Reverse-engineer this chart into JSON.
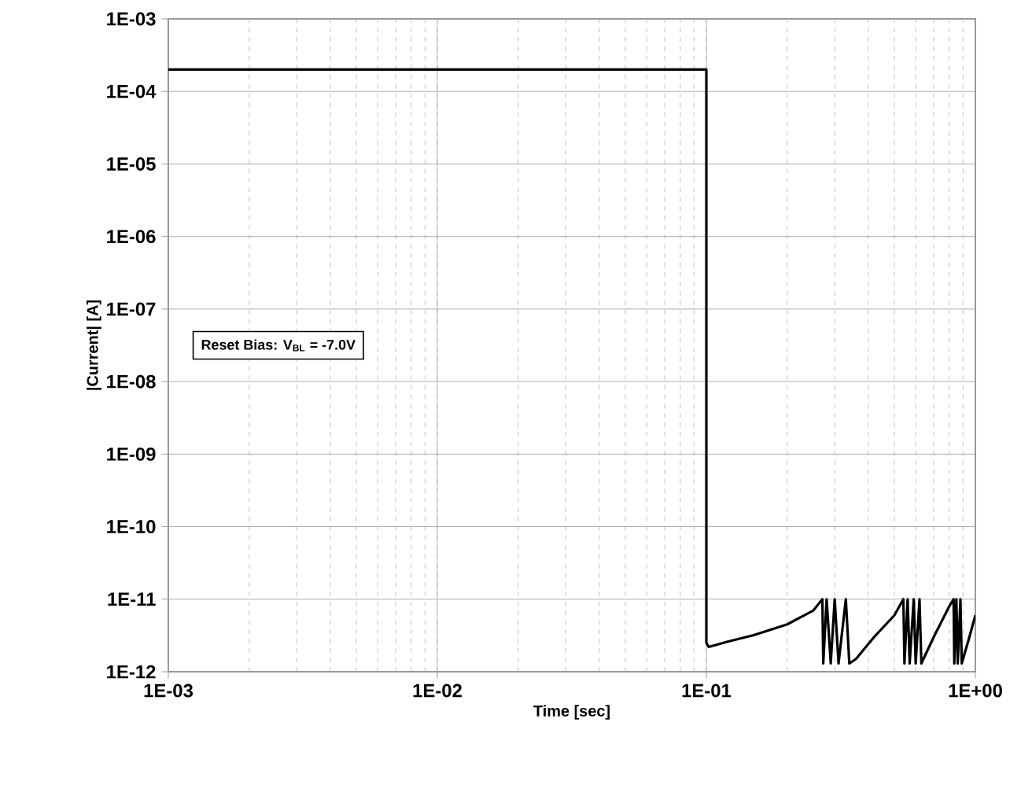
{
  "chart_data": {
    "type": "line",
    "xlabel": "Time [sec]",
    "ylabel": "|Current| [A]",
    "annotations": [
      "Reset Bias: V$_{BL}$ = -7.0V"
    ],
    "log": "xy",
    "grid": true,
    "marker": "none",
    "line_style": "solid",
    "xlim": [
      0.001,
      1
    ],
    "ylim": [
      1e-12,
      0.001
    ],
    "xticks": [
      {
        "value": 0.001,
        "label": "1E-03"
      },
      {
        "value": 0.01,
        "label": "1E-02"
      },
      {
        "value": 0.1,
        "label": "1E-01"
      },
      {
        "value": 1,
        "label": "1E+00"
      }
    ],
    "yticks": [
      {
        "value": 1e-12,
        "label": "1E-12"
      },
      {
        "value": 1e-11,
        "label": "1E-11"
      },
      {
        "value": 1e-10,
        "label": "1E-10"
      },
      {
        "value": 1e-09,
        "label": "1E-09"
      },
      {
        "value": 1e-08,
        "label": "1E-08"
      },
      {
        "value": 1e-07,
        "label": "1E-07"
      },
      {
        "value": 1e-06,
        "label": "1E-06"
      },
      {
        "value": 1e-05,
        "label": "1E-05"
      },
      {
        "value": 0.0001,
        "label": "1E-04"
      },
      {
        "value": 0.001,
        "label": "1E-03"
      }
    ],
    "x": [
      0.001,
      0.1,
      0.1,
      0.102,
      0.12,
      0.15,
      0.2,
      0.25,
      0.27,
      0.272,
      0.28,
      0.29,
      0.3,
      0.31,
      0.33,
      0.34,
      0.36,
      0.42,
      0.5,
      0.54,
      0.545,
      0.56,
      0.57,
      0.59,
      0.6,
      0.62,
      0.63,
      0.7,
      0.8,
      0.83,
      0.835,
      0.85,
      0.86,
      0.88,
      0.89,
      0.95,
      1.0
    ],
    "series": [
      {
        "color": "#000000",
        "values": [
          0.0002,
          0.0002,
          2.5e-12,
          2.2e-12,
          2.6e-12,
          3.2e-12,
          4.5e-12,
          7e-12,
          1e-11,
          1.3e-12,
          1e-11,
          1.3e-12,
          1e-11,
          1.3e-12,
          1e-11,
          1.3e-12,
          1.5e-12,
          3e-12,
          6e-12,
          1e-11,
          1.3e-12,
          1e-11,
          1.3e-12,
          1e-11,
          1.3e-12,
          1e-11,
          1.3e-12,
          3e-12,
          8e-12,
          1e-11,
          1.3e-12,
          1e-11,
          1.3e-12,
          1e-11,
          1.3e-12,
          3e-12,
          6e-12
        ]
      }
    ]
  }
}
